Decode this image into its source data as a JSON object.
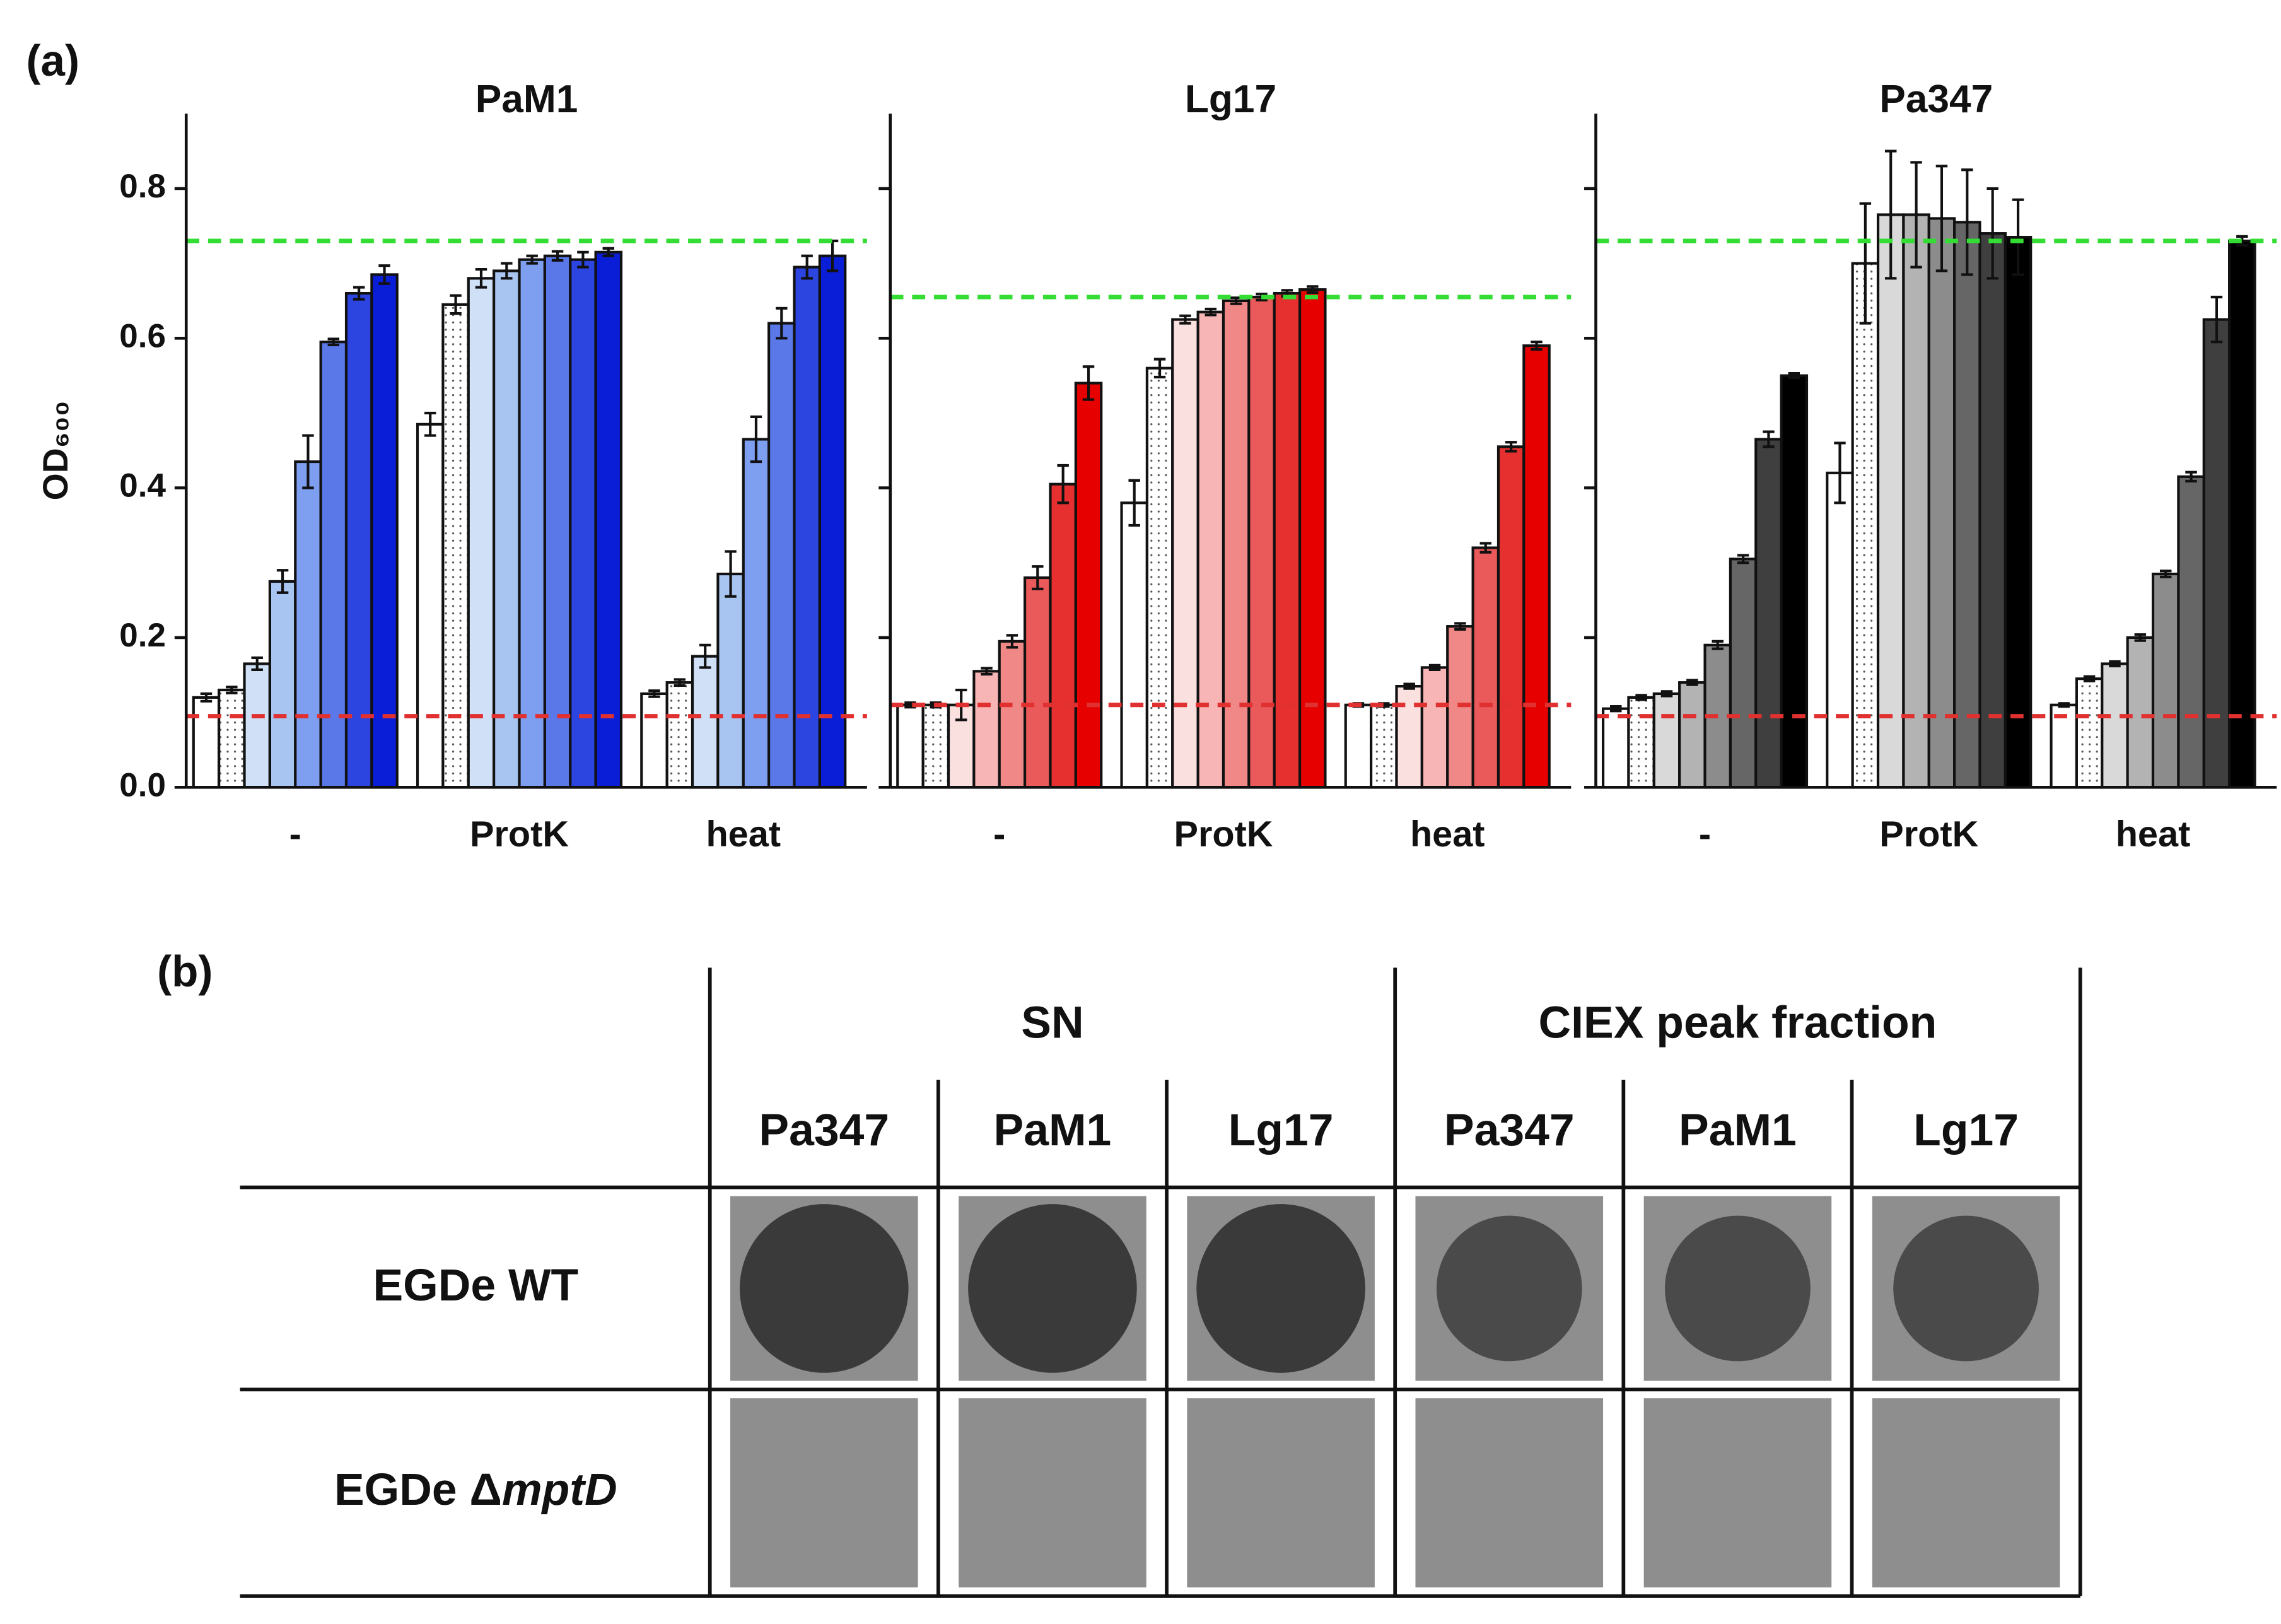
{
  "chart_data": [
    {
      "type": "bar",
      "title": "PaM1",
      "ylabel": "OD₆₀₀",
      "ylim": [
        0,
        0.9
      ],
      "yticks": [
        {
          "value": 0,
          "label": "0.0"
        },
        0.2,
        0.4,
        0.6,
        0.8
      ],
      "ytick_labels": true,
      "colors": [
        "#ffffff",
        "#ffffff",
        "#cfe0f7",
        "#a8c4f0",
        "#7e9ef0",
        "#5a78e8",
        "#2c44e0",
        "#0a1ed8"
      ],
      "hatch": [
        null,
        "dots",
        null,
        null,
        null,
        null,
        null,
        null
      ],
      "reference_lines": [
        {
          "value": 0.73,
          "color": "#33dd33"
        },
        {
          "value": 0.095,
          "color": "#e03030"
        }
      ],
      "groups": [
        {
          "label": "-",
          "values": [
            0.12,
            0.13,
            0.165,
            0.275,
            0.435,
            0.595,
            0.66,
            0.685
          ],
          "errors": [
            0.005,
            0.004,
            0.008,
            0.015,
            0.035,
            0.004,
            0.008,
            0.012
          ]
        },
        {
          "label": "ProtK",
          "values": [
            0.485,
            0.645,
            0.68,
            0.69,
            0.705,
            0.71,
            0.705,
            0.715
          ],
          "errors": [
            0.015,
            0.012,
            0.012,
            0.01,
            0.005,
            0.006,
            0.01,
            0.005
          ]
        },
        {
          "label": "heat",
          "values": [
            0.125,
            0.14,
            0.175,
            0.285,
            0.465,
            0.62,
            0.695,
            0.71
          ],
          "errors": [
            0.004,
            0.004,
            0.015,
            0.03,
            0.03,
            0.02,
            0.015,
            0.02
          ]
        }
      ]
    },
    {
      "type": "bar",
      "title": "Lg17",
      "ylim": [
        0,
        0.9
      ],
      "yticks": [
        0,
        0.2,
        0.4,
        0.6,
        0.8
      ],
      "ytick_labels": false,
      "colors": [
        "#ffffff",
        "#ffffff",
        "#fbe0e0",
        "#f7b5b5",
        "#f08888",
        "#ea5a5a",
        "#e63030",
        "#e60000"
      ],
      "hatch": [
        null,
        "dots",
        null,
        null,
        null,
        null,
        null,
        null
      ],
      "reference_lines": [
        {
          "value": 0.655,
          "color": "#33dd33"
        },
        {
          "value": 0.11,
          "color": "#e03030"
        }
      ],
      "groups": [
        {
          "label": "-",
          "values": [
            0.11,
            0.11,
            0.11,
            0.155,
            0.195,
            0.28,
            0.405,
            0.54
          ],
          "errors": [
            0.003,
            0.003,
            0.02,
            0.004,
            0.008,
            0.015,
            0.025,
            0.022
          ]
        },
        {
          "label": "ProtK",
          "values": [
            0.38,
            0.56,
            0.625,
            0.635,
            0.65,
            0.655,
            0.66,
            0.665
          ],
          "errors": [
            0.03,
            0.012,
            0.005,
            0.004,
            0.004,
            0.004,
            0.004,
            0.004
          ]
        },
        {
          "label": "heat",
          "values": [
            0.11,
            0.11,
            0.135,
            0.16,
            0.215,
            0.32,
            0.455,
            0.59
          ],
          "errors": [
            0.002,
            0.002,
            0.003,
            0.003,
            0.004,
            0.006,
            0.006,
            0.005
          ]
        }
      ]
    },
    {
      "type": "bar",
      "title": "Pa347",
      "ylim": [
        0,
        0.9
      ],
      "yticks": [
        0,
        0.2,
        0.4,
        0.6,
        0.8
      ],
      "ytick_labels": false,
      "colors": [
        "#ffffff",
        "#ffffff",
        "#d9d9d9",
        "#b3b3b3",
        "#8c8c8c",
        "#666666",
        "#3f3f3f",
        "#000000"
      ],
      "hatch": [
        null,
        "dots",
        null,
        null,
        null,
        null,
        null,
        null
      ],
      "reference_lines": [
        {
          "value": 0.73,
          "color": "#33dd33"
        },
        {
          "value": 0.095,
          "color": "#e03030"
        }
      ],
      "groups": [
        {
          "label": "-",
          "values": [
            0.105,
            0.12,
            0.125,
            0.14,
            0.19,
            0.305,
            0.465,
            0.55
          ],
          "errors": [
            0.003,
            0.003,
            0.003,
            0.003,
            0.005,
            0.005,
            0.01,
            0.003
          ]
        },
        {
          "label": "ProtK",
          "values": [
            0.42,
            0.7,
            0.765,
            0.765,
            0.76,
            0.755,
            0.74,
            0.735
          ],
          "errors": [
            0.04,
            0.08,
            0.085,
            0.07,
            0.07,
            0.07,
            0.06,
            0.05
          ]
        },
        {
          "label": "heat",
          "values": [
            0.11,
            0.145,
            0.165,
            0.2,
            0.285,
            0.415,
            0.625,
            0.73
          ],
          "errors": [
            0.002,
            0.003,
            0.003,
            0.004,
            0.004,
            0.006,
            0.03,
            0.006
          ]
        }
      ]
    }
  ],
  "panel_a_label": "(a)",
  "table": {
    "panel_label": "(b)",
    "column_groups": [
      "SN",
      "CIEX peak fraction"
    ],
    "columns": [
      "Pa347",
      "PaM1",
      "Lg17",
      "Pa347",
      "PaM1",
      "Lg17"
    ],
    "rows": [
      {
        "label": "EGDe WT"
      },
      {
        "label": "EGDe Δ",
        "label_italic": "mptD"
      }
    ]
  }
}
